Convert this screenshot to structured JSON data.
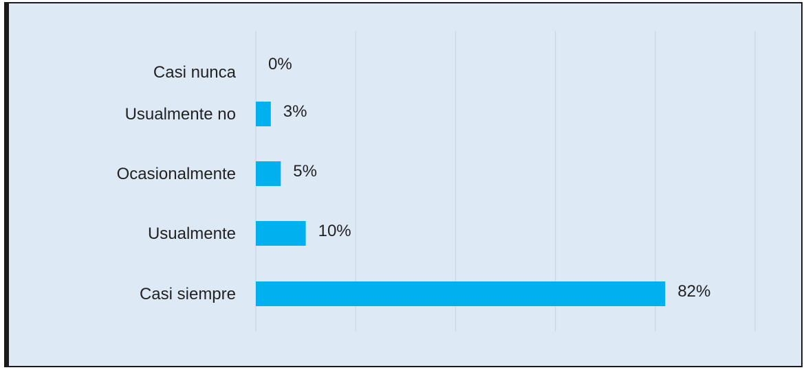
{
  "chart_data": {
    "type": "bar",
    "orientation": "horizontal",
    "categories": [
      "Casi nunca",
      "Usualmente no",
      "Ocasionalmente",
      "Usualmente",
      "Casi siempre"
    ],
    "values": [
      0,
      3,
      5,
      10,
      82
    ],
    "data_labels": [
      "0%",
      "3%",
      "5%",
      "10%",
      "82%"
    ],
    "unit": "%",
    "xlim": [
      0,
      100
    ],
    "grid": true,
    "legend": "none",
    "colors": {
      "bar": "#00b0ef",
      "background": "#dde9f5",
      "grid": "#c9d3dd",
      "text": "#222222"
    }
  }
}
